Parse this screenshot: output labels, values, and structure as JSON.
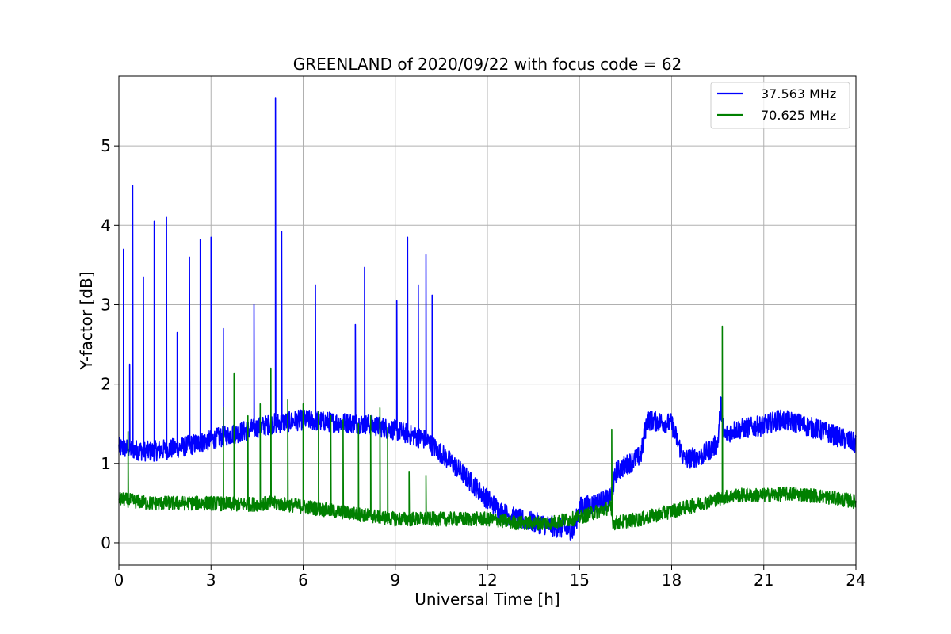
{
  "chart_data": {
    "type": "line",
    "title": "GREENLAND of 2020/09/22 with focus code = 62",
    "xlabel": "Universal Time [h]",
    "ylabel": "Y-factor [dB]",
    "xlim": [
      0,
      24
    ],
    "ylim": [
      -0.28,
      5.88
    ],
    "xticks": [
      0,
      3,
      6,
      9,
      12,
      15,
      18,
      21,
      24
    ],
    "xtick_labels": [
      "0",
      "3",
      "6",
      "9",
      "12",
      "15",
      "18",
      "21",
      "24"
    ],
    "yticks": [
      0,
      1,
      2,
      3,
      4,
      5
    ],
    "ytick_labels": [
      "0",
      "1",
      "2",
      "3",
      "4",
      "5"
    ],
    "grid": true,
    "legend_position": "top-right",
    "series": [
      {
        "name": "37.563 MHz",
        "color": "#0000ff",
        "baseline": [
          [
            0,
            1.2
          ],
          [
            1,
            1.15
          ],
          [
            2,
            1.2
          ],
          [
            3,
            1.3
          ],
          [
            4,
            1.4
          ],
          [
            5,
            1.5
          ],
          [
            6,
            1.55
          ],
          [
            7,
            1.52
          ],
          [
            8,
            1.5
          ],
          [
            9,
            1.42
          ],
          [
            10,
            1.3
          ],
          [
            11,
            0.95
          ],
          [
            12,
            0.55
          ],
          [
            12.5,
            0.38
          ],
          [
            13,
            0.3
          ],
          [
            14,
            0.22
          ],
          [
            14.8,
            0.15
          ],
          [
            15,
            0.45
          ],
          [
            16,
            0.55
          ],
          [
            16.2,
            0.9
          ],
          [
            17,
            1.1
          ],
          [
            17.2,
            1.55
          ],
          [
            18,
            1.5
          ],
          [
            18.4,
            1.05
          ],
          [
            19,
            1.1
          ],
          [
            19.5,
            1.25
          ],
          [
            19.6,
            1.75
          ],
          [
            19.7,
            1.35
          ],
          [
            20,
            1.42
          ],
          [
            21,
            1.48
          ],
          [
            21.5,
            1.55
          ],
          [
            22,
            1.52
          ],
          [
            23,
            1.4
          ],
          [
            24,
            1.25
          ]
        ],
        "noise": 0.13,
        "spikes": [
          [
            0.15,
            3.7
          ],
          [
            0.35,
            2.25
          ],
          [
            0.45,
            4.5
          ],
          [
            0.8,
            3.35
          ],
          [
            1.15,
            4.05
          ],
          [
            1.55,
            4.1
          ],
          [
            1.9,
            2.65
          ],
          [
            2.3,
            3.6
          ],
          [
            2.65,
            3.82
          ],
          [
            3.0,
            3.85
          ],
          [
            3.4,
            2.7
          ],
          [
            4.4,
            3.0
          ],
          [
            5.1,
            5.6
          ],
          [
            5.3,
            3.92
          ],
          [
            6.4,
            3.25
          ],
          [
            7.7,
            2.75
          ],
          [
            8.0,
            3.47
          ],
          [
            9.05,
            3.05
          ],
          [
            9.4,
            3.85
          ],
          [
            9.75,
            3.25
          ],
          [
            10.0,
            3.63
          ],
          [
            10.2,
            3.12
          ]
        ]
      },
      {
        "name": "70.625 MHz",
        "color": "#008000",
        "baseline": [
          [
            0,
            0.55
          ],
          [
            1,
            0.5
          ],
          [
            2,
            0.5
          ],
          [
            3,
            0.5
          ],
          [
            4,
            0.48
          ],
          [
            5,
            0.5
          ],
          [
            6,
            0.46
          ],
          [
            7,
            0.4
          ],
          [
            8,
            0.35
          ],
          [
            9,
            0.3
          ],
          [
            10,
            0.3
          ],
          [
            11,
            0.3
          ],
          [
            12,
            0.3
          ],
          [
            13,
            0.25
          ],
          [
            14,
            0.25
          ],
          [
            15,
            0.32
          ],
          [
            16,
            0.45
          ],
          [
            16.1,
            0.25
          ],
          [
            17,
            0.3
          ],
          [
            18,
            0.4
          ],
          [
            19,
            0.5
          ],
          [
            20,
            0.6
          ],
          [
            21,
            0.6
          ],
          [
            22,
            0.62
          ],
          [
            23,
            0.58
          ],
          [
            24,
            0.52
          ]
        ],
        "noise": 0.09,
        "spikes": [
          [
            0.3,
            1.4
          ],
          [
            3.4,
            1.7
          ],
          [
            3.75,
            2.13
          ],
          [
            4.2,
            1.6
          ],
          [
            4.6,
            1.75
          ],
          [
            4.95,
            2.2
          ],
          [
            5.5,
            1.8
          ],
          [
            6.0,
            1.75
          ],
          [
            6.5,
            1.65
          ],
          [
            6.9,
            1.6
          ],
          [
            7.3,
            1.55
          ],
          [
            7.8,
            1.5
          ],
          [
            8.2,
            1.6
          ],
          [
            8.5,
            1.7
          ],
          [
            8.75,
            1.45
          ],
          [
            9.45,
            0.9
          ],
          [
            10.0,
            0.85
          ],
          [
            16.05,
            1.43
          ],
          [
            19.65,
            2.73
          ]
        ]
      }
    ]
  }
}
